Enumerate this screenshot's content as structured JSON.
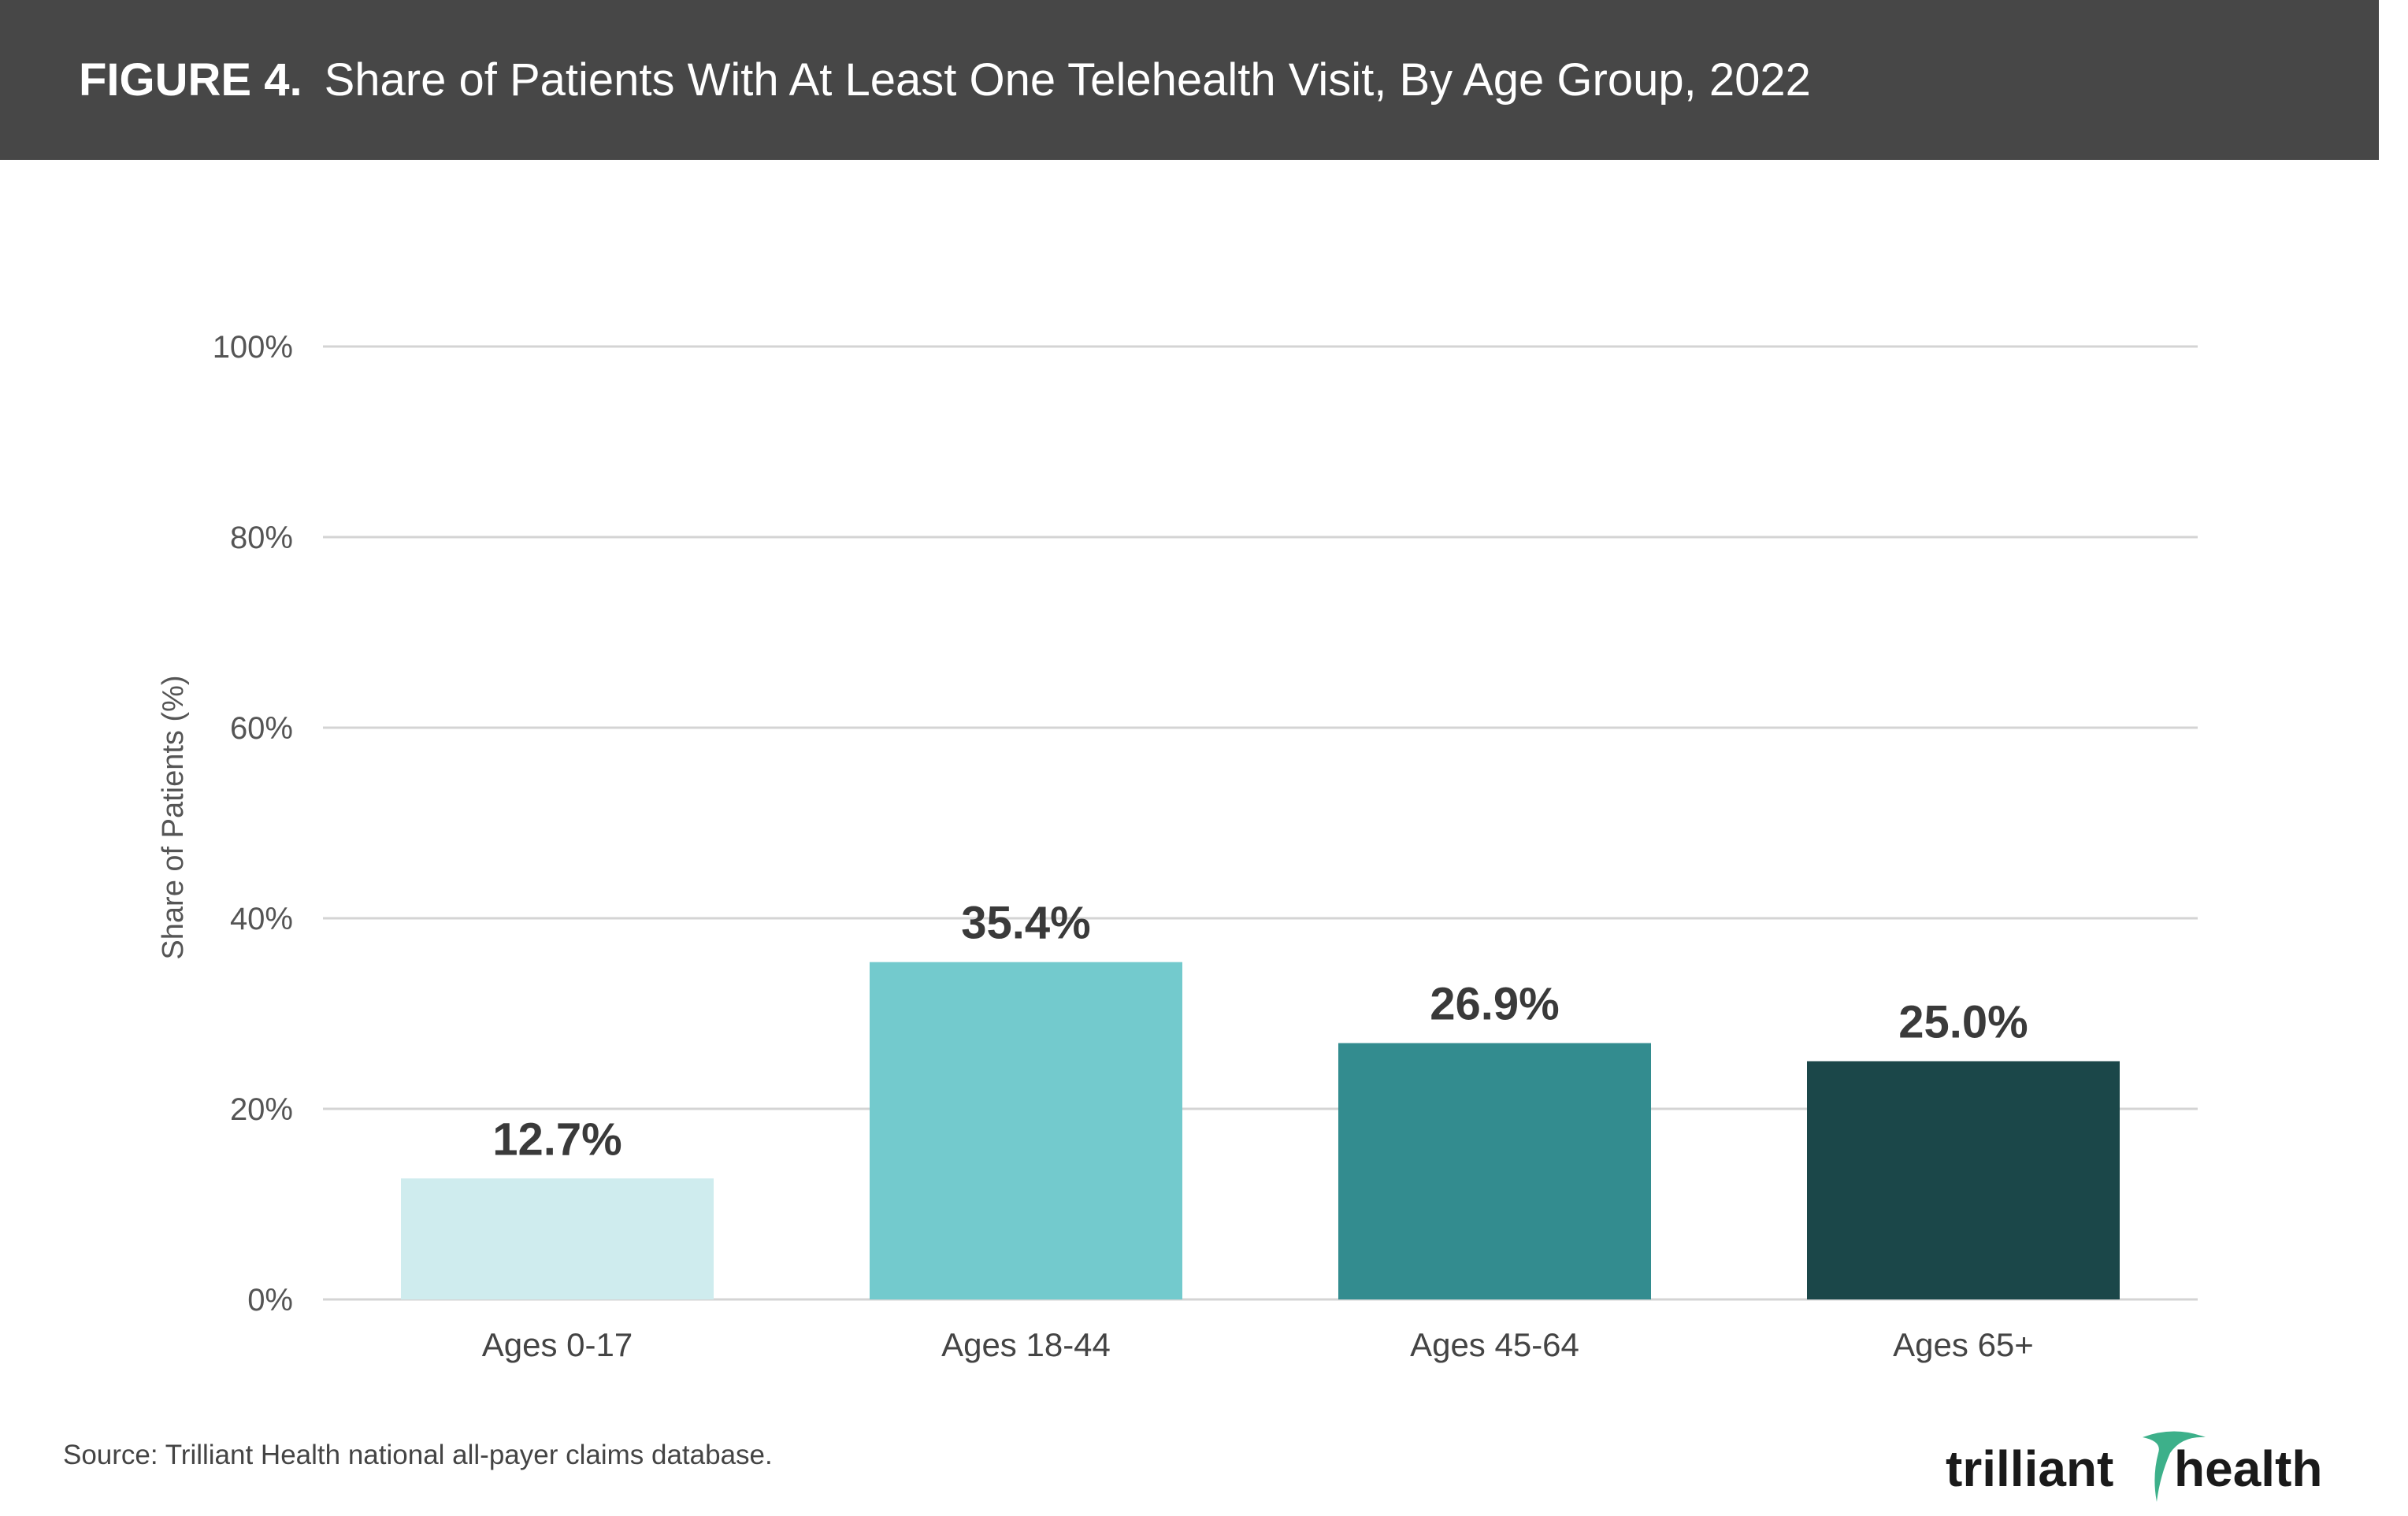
{
  "figure": {
    "label": "FIGURE 4.",
    "title": "Share of Patients With At Least One Telehealth Visit, By Age Group, 2022"
  },
  "chart_data": {
    "type": "bar",
    "title": "Share of Patients With At Least One Telehealth Visit, By Age Group, 2022",
    "xlabel": "",
    "ylabel": "Share of Patients (%)",
    "ylim": [
      0,
      100
    ],
    "yticks": [
      0,
      20,
      40,
      60,
      80,
      100
    ],
    "ytick_labels": [
      "0%",
      "20%",
      "40%",
      "60%",
      "80%",
      "100%"
    ],
    "categories": [
      "Ages 0-17",
      "Ages 18-44",
      "Ages 45-64",
      "Ages 65+"
    ],
    "values": [
      12.7,
      35.4,
      26.9,
      25.0
    ],
    "data_labels": [
      "12.7%",
      "35.4%",
      "26.9%",
      "25.0%"
    ],
    "colors": [
      "#cfecee",
      "#73cacd",
      "#338c8f",
      "#1b4749"
    ],
    "grid": true,
    "legend": "none"
  },
  "source": "Source: Trilliant Health national all-payer claims database.",
  "logo": {
    "text_left": "trilliant",
    "text_right": "health",
    "accent_color": "#3db08a"
  }
}
